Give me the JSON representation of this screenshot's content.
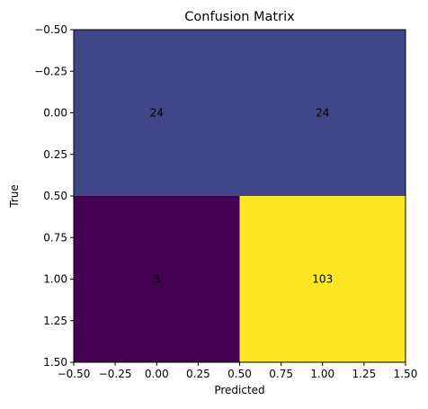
{
  "chart_data": {
    "type": "heatmap",
    "title": "Confusion Matrix",
    "xlabel": "Predicted",
    "ylabel": "True",
    "matrix": [
      [
        24,
        24
      ],
      [
        3,
        103
      ]
    ],
    "cell_colors": [
      [
        "#404788",
        "#404788"
      ],
      [
        "#440154",
        "#fde725"
      ]
    ],
    "x_range": [
      -0.5,
      1.5
    ],
    "y_range": [
      -0.5,
      1.5
    ],
    "y_inverted": true,
    "x_ticks": [
      "−0.50",
      "−0.25",
      "0.00",
      "0.25",
      "0.50",
      "0.75",
      "1.00",
      "1.25",
      "1.50"
    ],
    "y_ticks": [
      "−0.50",
      "−0.25",
      "0.00",
      "0.25",
      "0.50",
      "0.75",
      "1.00",
      "1.25",
      "1.50"
    ],
    "grid": false,
    "legend": "none"
  }
}
